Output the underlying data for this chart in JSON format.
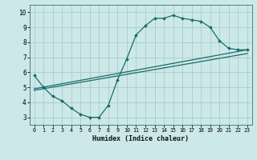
{
  "xlabel": "Humidex (Indice chaleur)",
  "xlim": [
    -0.5,
    23.5
  ],
  "ylim": [
    2.5,
    10.5
  ],
  "xticks": [
    0,
    1,
    2,
    3,
    4,
    5,
    6,
    7,
    8,
    9,
    10,
    11,
    12,
    13,
    14,
    15,
    16,
    17,
    18,
    19,
    20,
    21,
    22,
    23
  ],
  "yticks": [
    3,
    4,
    5,
    6,
    7,
    8,
    9,
    10
  ],
  "bg_color": "#cce8e8",
  "grid_color": "#aacccc",
  "line_color": "#1a6b6b",
  "curve_x": [
    0,
    1,
    2,
    3,
    4,
    5,
    6,
    7,
    8,
    9,
    10,
    11,
    12,
    13,
    14,
    15,
    16,
    17,
    18,
    19,
    20,
    21,
    22,
    23
  ],
  "curve_y": [
    5.8,
    5.0,
    4.4,
    4.1,
    3.6,
    3.2,
    3.0,
    3.0,
    3.8,
    5.5,
    6.9,
    8.5,
    9.1,
    9.6,
    9.6,
    9.8,
    9.6,
    9.5,
    9.4,
    9.0,
    8.1,
    7.6,
    7.5,
    7.5
  ],
  "line2_x": [
    0,
    23
  ],
  "line2_y": [
    4.9,
    7.5
  ],
  "line3_x": [
    0,
    23
  ],
  "line3_y": [
    4.8,
    7.25
  ]
}
